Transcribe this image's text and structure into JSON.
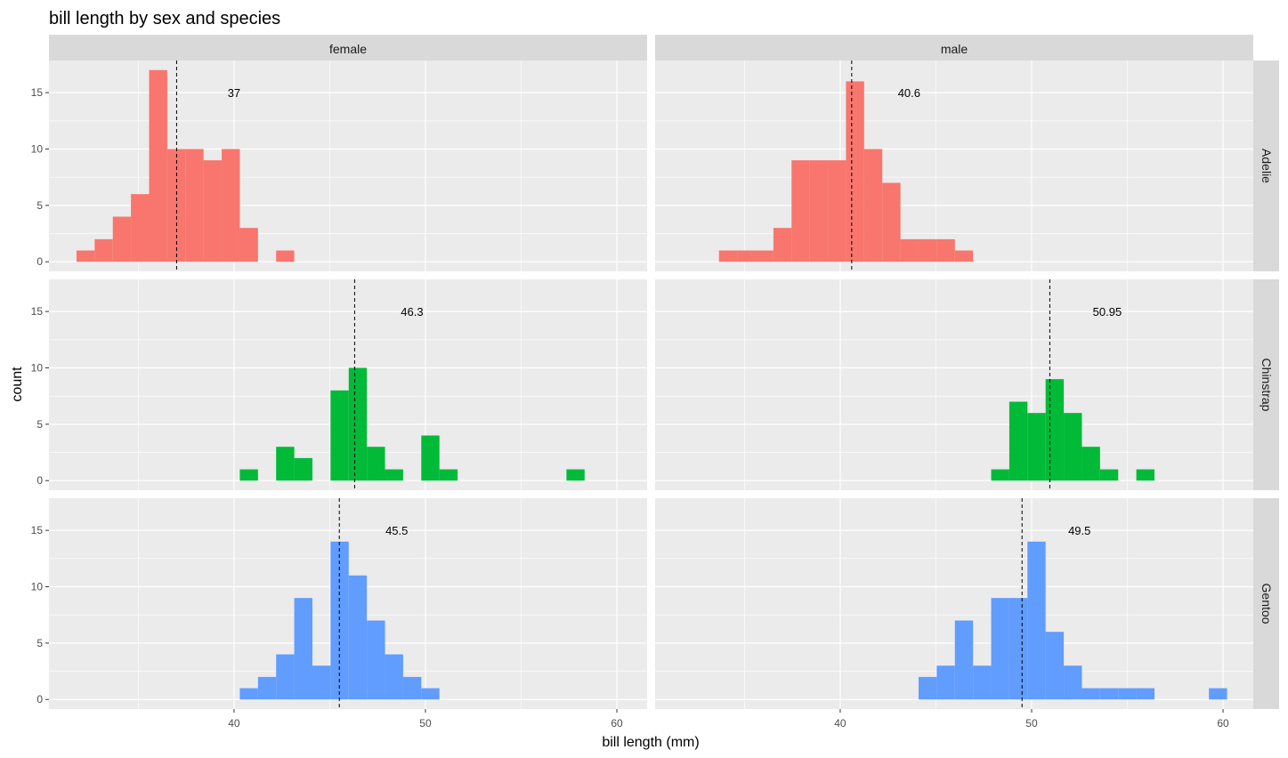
{
  "chart_data": {
    "type": "bar",
    "title": "bill length by sex and species",
    "xlabel": "bill length (mm)",
    "ylabel": "count",
    "xlim": [
      30.33,
      61.58
    ],
    "ylim": [
      -0.85,
      17.85
    ],
    "x_ticks": [
      40,
      50,
      60
    ],
    "y_ticks": [
      0,
      5,
      10,
      15
    ],
    "grid": true,
    "bin_start": 31.77,
    "bin_width": 0.948,
    "columns": [
      "female",
      "male"
    ],
    "rows": [
      "Adelie",
      "Chinstrap",
      "Gentoo"
    ],
    "colors": {
      "Adelie": "#F8766D",
      "Chinstrap": "#00BA38",
      "Gentoo": "#619CFF"
    },
    "panels": [
      {
        "sex": "female",
        "species": "Adelie",
        "first_bin": 0,
        "counts": [
          1,
          2,
          4,
          6,
          17,
          10,
          10,
          9,
          10,
          3,
          0,
          1
        ],
        "mean": 37,
        "mean_label": "37"
      },
      {
        "sex": "male",
        "species": "Adelie",
        "first_bin": 2,
        "counts": [
          1,
          1,
          1,
          3,
          9,
          9,
          9,
          16,
          10,
          7,
          2,
          2,
          2,
          1
        ],
        "mean": 40.6,
        "mean_label": "40.6"
      },
      {
        "sex": "female",
        "species": "Chinstrap",
        "first_bin": 9,
        "counts": [
          1,
          0,
          3,
          2,
          0,
          8,
          10,
          3,
          1,
          0,
          4,
          1,
          0,
          0,
          0,
          0,
          0,
          0,
          1
        ],
        "mean": 46.3,
        "mean_label": "46.3"
      },
      {
        "sex": "male",
        "species": "Chinstrap",
        "first_bin": 17,
        "counts": [
          1,
          7,
          6,
          9,
          6,
          3,
          1,
          0,
          1
        ],
        "mean": 50.95,
        "mean_label": "50.95"
      },
      {
        "sex": "female",
        "species": "Gentoo",
        "first_bin": 9,
        "counts": [
          1,
          2,
          4,
          9,
          3,
          14,
          11,
          7,
          4,
          2,
          1
        ],
        "mean": 45.5,
        "mean_label": "45.5"
      },
      {
        "sex": "male",
        "species": "Gentoo",
        "first_bin": 13,
        "counts": [
          2,
          3,
          7,
          3,
          9,
          9,
          14,
          6,
          3,
          1,
          1,
          1,
          1,
          0,
          0,
          0,
          1
        ],
        "mean": 49.5,
        "mean_label": "49.5"
      }
    ]
  }
}
